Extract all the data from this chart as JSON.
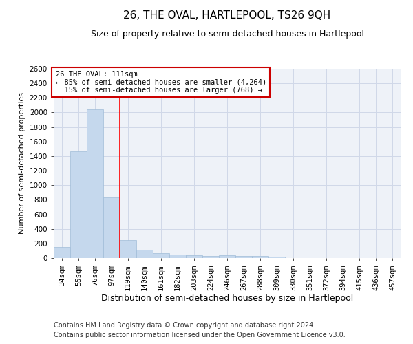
{
  "title": "26, THE OVAL, HARTLEPOOL, TS26 9QH",
  "subtitle": "Size of property relative to semi-detached houses in Hartlepool",
  "xlabel": "Distribution of semi-detached houses by size in Hartlepool",
  "ylabel": "Number of semi-detached properties",
  "footer_line1": "Contains HM Land Registry data © Crown copyright and database right 2024.",
  "footer_line2": "Contains public sector information licensed under the Open Government Licence v3.0.",
  "categories": [
    "34sqm",
    "55sqm",
    "76sqm",
    "97sqm",
    "119sqm",
    "140sqm",
    "161sqm",
    "182sqm",
    "203sqm",
    "224sqm",
    "246sqm",
    "267sqm",
    "288sqm",
    "309sqm",
    "330sqm",
    "351sqm",
    "372sqm",
    "394sqm",
    "415sqm",
    "436sqm",
    "457sqm"
  ],
  "values": [
    155,
    1465,
    2045,
    835,
    250,
    115,
    70,
    45,
    35,
    30,
    35,
    30,
    25,
    15,
    0,
    0,
    0,
    0,
    0,
    0,
    0
  ],
  "bar_color": "#c5d8ed",
  "bar_edge_color": "#a0bcd8",
  "grid_color": "#d0d8e8",
  "background_color": "#eef2f8",
  "property_label": "26 THE OVAL: 111sqm",
  "pct_smaller": 85,
  "count_smaller": 4264,
  "pct_larger": 15,
  "count_larger": 768,
  "red_line_x": 3.5,
  "annotation_box_color": "#ffffff",
  "annotation_box_edge_color": "#cc0000",
  "ylim": [
    0,
    2600
  ],
  "yticks": [
    0,
    200,
    400,
    600,
    800,
    1000,
    1200,
    1400,
    1600,
    1800,
    2000,
    2200,
    2400,
    2600
  ],
  "title_fontsize": 11,
  "subtitle_fontsize": 9,
  "ylabel_fontsize": 8,
  "xlabel_fontsize": 9,
  "tick_fontsize": 7.5,
  "footer_fontsize": 7
}
